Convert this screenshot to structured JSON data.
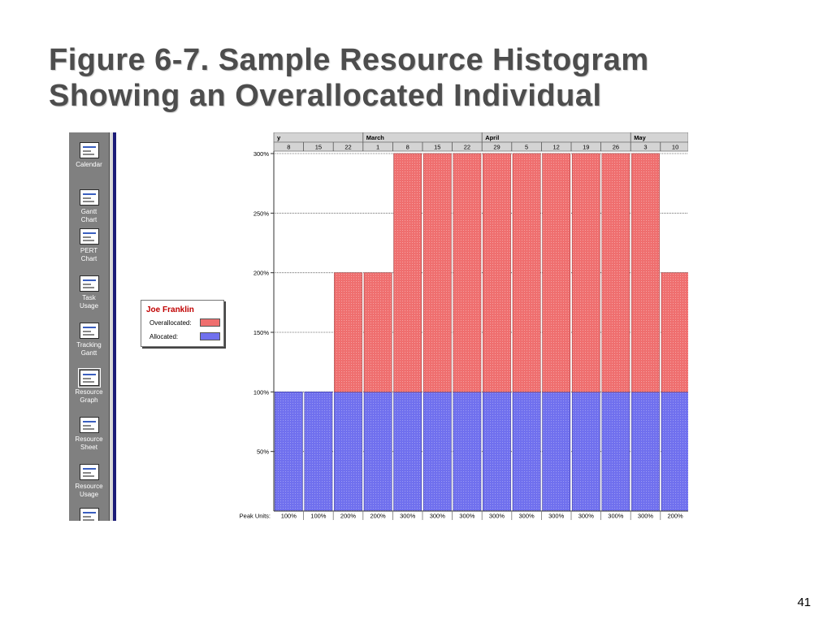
{
  "slide": {
    "title_line1": "Figure 6-7. Sample Resource Histogram",
    "title_line2": "Showing an Overallocated Individual",
    "page_number": "41"
  },
  "view_bar": {
    "items": [
      {
        "label1": "Calendar",
        "label2": "",
        "icon": "calendar-icon"
      },
      {
        "label1": "Gantt",
        "label2": "Chart",
        "icon": "gantt-chart-icon"
      },
      {
        "label1": "PERT",
        "label2": "Chart",
        "icon": "pert-chart-icon"
      },
      {
        "label1": "Task",
        "label2": "Usage",
        "icon": "task-usage-icon"
      },
      {
        "label1": "Tracking",
        "label2": "Gantt",
        "icon": "tracking-gantt-icon"
      },
      {
        "label1": "Resource",
        "label2": "Graph",
        "icon": "resource-graph-icon",
        "active": true
      },
      {
        "label1": "Resource",
        "label2": "Sheet",
        "icon": "resource-sheet-icon"
      },
      {
        "label1": "Resource",
        "label2": "Usage",
        "icon": "resource-usage-icon"
      },
      {
        "label1": "",
        "label2": "",
        "icon": "more-views-icon"
      }
    ]
  },
  "legend": {
    "resource_name": "Joe Franklin",
    "overallocated_label": "Overallocated:",
    "allocated_label": "Allocated:"
  },
  "chart_data": {
    "type": "bar",
    "stacked": true,
    "timescale_months": [
      {
        "label": "y",
        "start_index": 0
      },
      {
        "label": "March",
        "start_index": 3
      },
      {
        "label": "April",
        "start_index": 7
      },
      {
        "label": "May",
        "start_index": 12
      }
    ],
    "categories": [
      "8",
      "15",
      "22",
      "1",
      "8",
      "15",
      "22",
      "29",
      "5",
      "12",
      "19",
      "26",
      "3",
      "10"
    ],
    "series": [
      {
        "name": "Allocated",
        "color": "#7070ee",
        "values": [
          100,
          100,
          100,
          100,
          100,
          100,
          100,
          100,
          100,
          100,
          100,
          100,
          100,
          100
        ]
      },
      {
        "name": "Overallocated",
        "color": "#ef6f6f",
        "values": [
          0,
          0,
          100,
          100,
          200,
          200,
          200,
          200,
          200,
          200,
          200,
          200,
          200,
          100
        ]
      }
    ],
    "y_ticks": [
      "50%",
      "100%",
      "150%",
      "200%",
      "250%",
      "300%"
    ],
    "ylim": [
      0,
      300
    ],
    "peak_units_label": "Peak Units:",
    "peak_units": [
      "100%",
      "100%",
      "200%",
      "200%",
      "300%",
      "300%",
      "300%",
      "300%",
      "300%",
      "300%",
      "300%",
      "300%",
      "300%",
      "200%"
    ],
    "grid": true,
    "legend_position": "left"
  }
}
